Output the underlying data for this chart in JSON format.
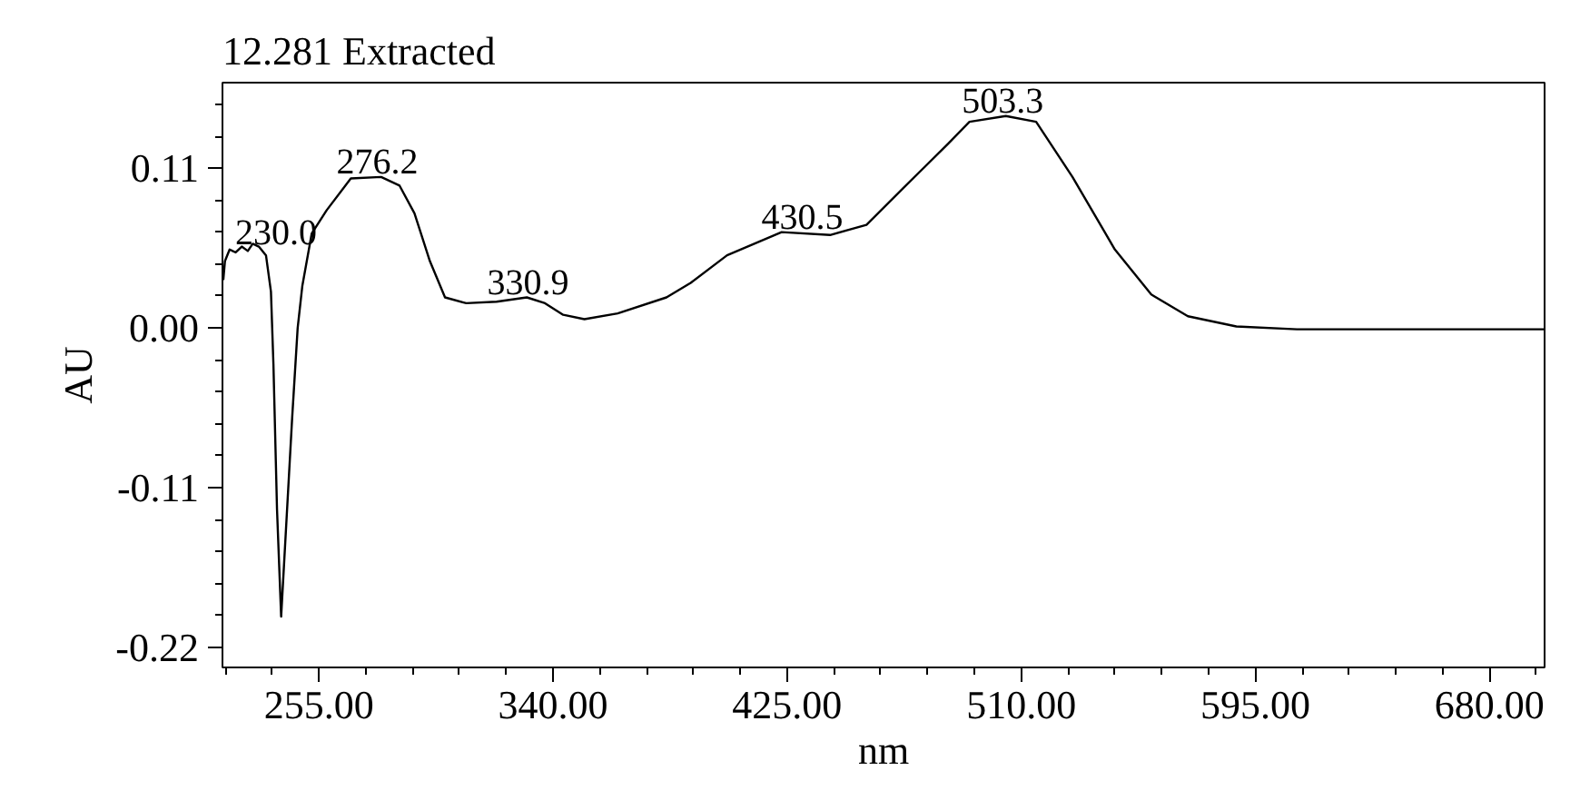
{
  "chart_data": {
    "type": "line",
    "title": "12.281 Extracted",
    "xlabel": "nm",
    "ylabel": "AU",
    "xlim": [
      220,
      700
    ],
    "xticks": [
      {
        "value": 255,
        "label": "255.00"
      },
      {
        "value": 340,
        "label": "340.00"
      },
      {
        "value": 425,
        "label": "425.00"
      },
      {
        "value": 510,
        "label": "510.00"
      },
      {
        "value": 595,
        "label": "595.00"
      },
      {
        "value": 680,
        "label": "680.00"
      }
    ],
    "ylim": [
      -0.234,
      0.169
    ],
    "yticks": [
      {
        "value": -0.22,
        "label": "-0.22"
      },
      {
        "value": -0.11,
        "label": "-0.11"
      },
      {
        "value": 0,
        "label": "0.00"
      },
      {
        "value": 0.11,
        "label": "0.11"
      }
    ],
    "grid": false,
    "marker": "none",
    "line_style": "solid",
    "series": [
      {
        "color": "#000000",
        "x": [
          220.3,
          220.9,
          222.6,
          224.8,
          227,
          229.2,
          231,
          233.2,
          235.8,
          237.6,
          238.5,
          239.8,
          241.3,
          245.3,
          247.3,
          249,
          252.4,
          257.8,
          266.6,
          277.6,
          284.3,
          289.7,
          295.3,
          300.8,
          308.5,
          319.5,
          330.5,
          337.1,
          343.7,
          351.4,
          363.5,
          381.2,
          390,
          403.2,
          423,
          440.6,
          453.8,
          467,
          483.5,
          491.2,
          504.4,
          515.4,
          528.6,
          544,
          557.2,
          570.5,
          588.1,
          610.1,
          700
        ],
        "values": [
          0.033,
          0.046,
          0.054,
          0.052,
          0.056,
          0.053,
          0.058,
          0.056,
          0.05,
          0.025,
          -0.025,
          -0.125,
          -0.199,
          -0.062,
          0,
          0.029,
          0.065,
          0.081,
          0.103,
          0.104,
          0.098,
          0.079,
          0.046,
          0.021,
          0.017,
          0.018,
          0.021,
          0.017,
          0.009,
          0.006,
          0.01,
          0.021,
          0.031,
          0.05,
          0.066,
          0.064,
          0.071,
          0.096,
          0.127,
          0.142,
          0.146,
          0.142,
          0.104,
          0.054,
          0.023,
          0.008,
          0.001,
          -0.001,
          -0.001
        ]
      }
    ],
    "annotations": [
      {
        "text": "230.0",
        "x": 230.0,
        "y": 0.055
      },
      {
        "text": "276.2",
        "x": 276.2,
        "y": 0.104
      },
      {
        "text": "330.9",
        "x": 330.9,
        "y": 0.021
      },
      {
        "text": "430.5",
        "x": 430.5,
        "y": 0.066
      },
      {
        "text": "503.3",
        "x": 503.3,
        "y": 0.146
      }
    ]
  }
}
